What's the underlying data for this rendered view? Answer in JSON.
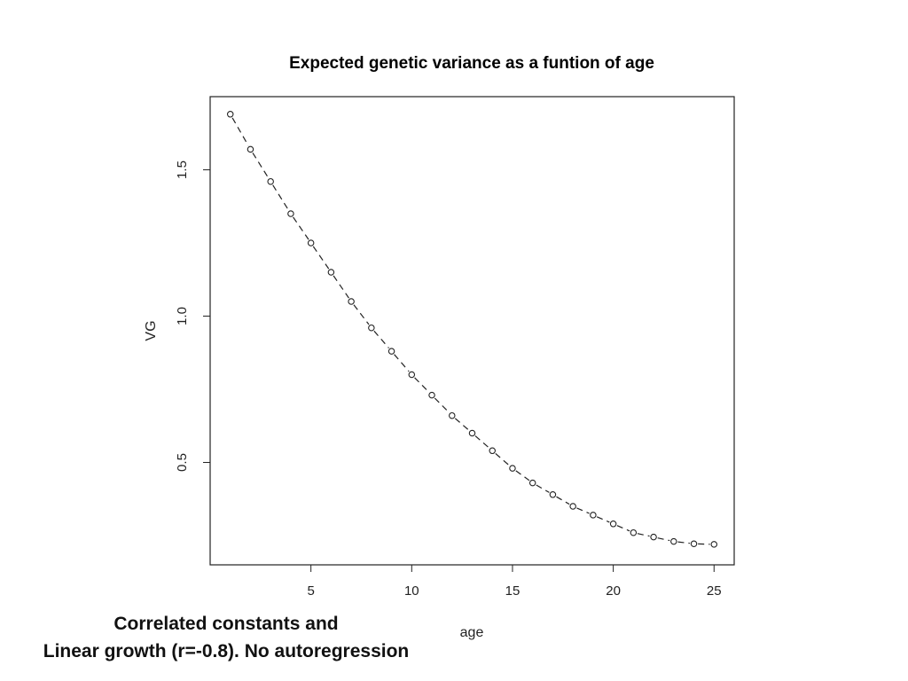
{
  "chart_data": {
    "type": "scatter",
    "title": "Expected genetic variance as a funtion of age",
    "xlabel": "age",
    "ylabel": "VG",
    "xlim": [
      0,
      26
    ],
    "ylim": [
      0.15,
      1.75
    ],
    "xticks": [
      5,
      10,
      15,
      20,
      25
    ],
    "xtick_labels": [
      "5",
      "10",
      "15",
      "20",
      "25"
    ],
    "yticks": [
      0.5,
      1.0,
      1.5
    ],
    "ytick_labels": [
      "0.5",
      "1.0",
      "1.5"
    ],
    "grid": false,
    "marker": "open-circle",
    "line_style": "dashed",
    "series": [
      {
        "x": [
          1,
          2,
          3,
          4,
          5,
          6,
          7,
          8,
          9,
          10,
          11,
          12,
          13,
          14,
          15,
          16,
          17,
          18,
          19,
          20,
          21,
          22,
          23,
          24,
          25
        ],
        "y": [
          1.69,
          1.57,
          1.46,
          1.35,
          1.25,
          1.15,
          1.05,
          0.96,
          0.88,
          0.8,
          0.73,
          0.66,
          0.6,
          0.54,
          0.48,
          0.43,
          0.39,
          0.35,
          0.32,
          0.29,
          0.26,
          0.245,
          0.23,
          0.222,
          0.22
        ]
      }
    ]
  },
  "caption": {
    "line1": "Correlated constants and",
    "line2": "Linear growth (r=-0.8).  No autoregression"
  }
}
